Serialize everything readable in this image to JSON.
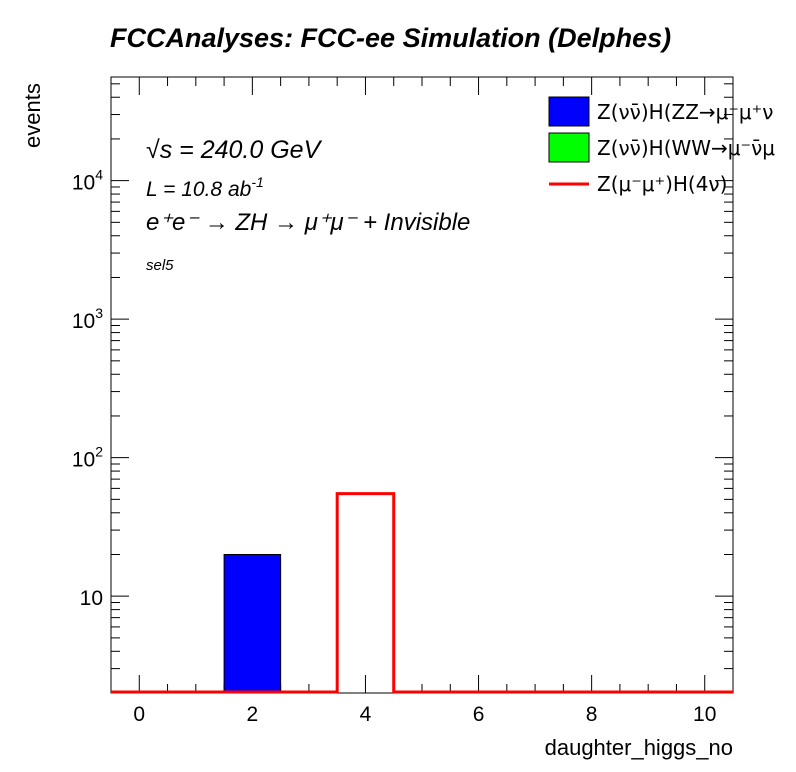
{
  "chart_data": {
    "type": "bar",
    "title": "FCCAnalyses: FCC-ee Simulation (Delphes)",
    "xlabel": "daughter_higgs_no",
    "ylabel": "events",
    "x_bin_width": 1,
    "xlim": [
      -0.5,
      10.5
    ],
    "ylim": [
      2,
      56000
    ],
    "yscale": "log",
    "x_ticks": [
      0,
      2,
      4,
      6,
      8,
      10
    ],
    "y_ticks": [
      {
        "value": 10,
        "base": "10",
        "exp": ""
      },
      {
        "value": 100,
        "base": "10",
        "exp": "2"
      },
      {
        "value": 1000,
        "base": "10",
        "exp": "3"
      },
      {
        "value": 10000,
        "base": "10",
        "exp": "4"
      }
    ],
    "series": [
      {
        "name": "Z(νν̄)H(ZZ→μ⁻μ⁺ν",
        "style": "filled",
        "color": "#0000ff",
        "bins": [
          {
            "x": 2,
            "value": 20
          }
        ]
      },
      {
        "name": "Z(νν̄)H(WW→μ⁻ν̄μ",
        "style": "filled",
        "color": "#00ff00",
        "bins": []
      },
      {
        "name": "Z(μ⁻μ⁺)H(4ν)",
        "style": "line",
        "color": "#ff0000",
        "bins": [
          {
            "x": 4,
            "value": 55
          }
        ]
      }
    ],
    "legend_position": "top-right",
    "annotations": {
      "energy": "√s = 240.0 GeV",
      "lumi_prefix": "L = 10.8 ab",
      "lumi_exp": "-1",
      "process": "e⁺e⁻ → ZH → μ⁺μ⁻ + Invisible",
      "selection": "sel5"
    }
  }
}
